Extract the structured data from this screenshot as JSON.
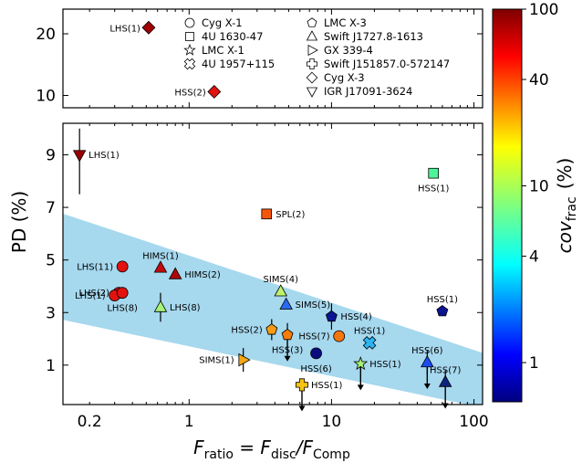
{
  "chart_data": {
    "type": "scatter",
    "x_scale": "log",
    "colorbar_scale": "log",
    "colorbar_ticks": [
      "1",
      "4",
      "10",
      "40",
      "100"
    ],
    "colorbar_label_parts": [
      "cov",
      "frac",
      "(%)"
    ],
    "xlabel_parts": [
      "F",
      "ratio",
      " = F",
      "disc",
      "/F",
      "Comp"
    ],
    "ylabel": "PD (%)",
    "x_ticks": [
      "0.2",
      "1",
      "10",
      "100"
    ],
    "top_panel": {
      "ylim": [
        8,
        24
      ],
      "y_ticks": [
        "10",
        "20"
      ],
      "points": [
        {
          "x": 0.52,
          "y": 21.0,
          "marker": "diamond",
          "color": "#a00000",
          "label": "LHS(1)"
        },
        {
          "x": 1.5,
          "y": 10.6,
          "marker": "diamond",
          "color": "#e2120f",
          "label": "HSS(2)"
        }
      ]
    },
    "bottom_panel": {
      "ylim": [
        -0.5,
        10.2
      ],
      "y_ticks": [
        "1",
        "3",
        "5",
        "7",
        "9"
      ],
      "points": [
        {
          "x": 0.17,
          "y": 9.0,
          "err_lo": 1.5,
          "err_hi": 1.0,
          "marker": "tri-down",
          "color": "#9b0000",
          "label": "LHS(1)",
          "label_pos": "right"
        },
        {
          "x": 0.34,
          "y": 4.75,
          "marker": "circle",
          "color": "#e2120f",
          "label": "LHS(11)",
          "label_pos": "left"
        },
        {
          "x": 0.32,
          "y": 3.75,
          "marker": "circle",
          "color": "#e2120f",
          "label": "LHS(2)",
          "label_pos": "left"
        },
        {
          "x": 0.3,
          "y": 3.65,
          "marker": "circle",
          "color": "#e2120f",
          "label": "LHS(1)",
          "label_pos": "left"
        },
        {
          "x": 0.34,
          "y": 3.75,
          "marker": "circle",
          "color": "#e2120f",
          "label": "LHS(8)",
          "label_pos": "below"
        },
        {
          "x": 0.63,
          "y": 4.7,
          "marker": "tri-up",
          "color": "#c40a0a",
          "label": "HIMS(1)",
          "label_pos": "above"
        },
        {
          "x": 0.8,
          "y": 4.45,
          "marker": "tri-up",
          "color": "#b00606",
          "label": "HIMS(2)",
          "label_pos": "right"
        },
        {
          "x": 0.63,
          "y": 3.2,
          "err_lo": 0.55,
          "err_hi": 0.55,
          "marker": "tri-up",
          "color": "#a8f279",
          "label": "LHS(8)",
          "label_pos": "right"
        },
        {
          "x": 3.5,
          "y": 6.75,
          "marker": "square",
          "color": "#f5560c",
          "label": "SPL(2)",
          "label_pos": "right"
        },
        {
          "x": 52,
          "y": 8.3,
          "marker": "square",
          "color": "#4cf59a",
          "label": "HSS(1)",
          "label_pos": "below"
        },
        {
          "x": 4.4,
          "y": 3.8,
          "marker": "tri-up",
          "color": "#bff26b",
          "label": "SIMS(4)",
          "label_pos": "above"
        },
        {
          "x": 4.8,
          "y": 3.3,
          "marker": "tri-up",
          "color": "#2a6af2",
          "label": "SIMS(5)",
          "label_pos": "right"
        },
        {
          "x": 3.8,
          "y": 2.35,
          "err_lo": 0.4,
          "err_hi": 0.4,
          "marker": "pentagon",
          "color": "#f59b14",
          "label": "HSS(2)",
          "label_pos": "left"
        },
        {
          "x": 4.9,
          "y": 2.15,
          "err_lo": 0.0,
          "err_hi": 0.45,
          "upper_limit": true,
          "marker": "pentagon",
          "color": "#f57d0c",
          "label": "HSS(3)",
          "label_pos": "below"
        },
        {
          "x": 10.0,
          "y": 2.85,
          "err_lo": 0.5,
          "err_hi": 0.5,
          "marker": "pentagon",
          "color": "#0c1691",
          "label": "HSS(4)",
          "label_pos": "right"
        },
        {
          "x": 11.3,
          "y": 2.1,
          "marker": "circle",
          "color": "#f5760c",
          "label": "HSS(7)",
          "label_pos": "left"
        },
        {
          "x": 7.8,
          "y": 1.45,
          "marker": "circle",
          "color": "#0a0c7d",
          "label": "HSS(6)",
          "label_pos": "below"
        },
        {
          "x": 18.5,
          "y": 1.85,
          "marker": "cross",
          "color": "#2ab5f2",
          "label": "HSS(1)",
          "label_pos": "above"
        },
        {
          "x": 16,
          "y": 1.05,
          "upper_limit": true,
          "marker": "star",
          "color": "#a8f279",
          "label": "HSS(1)",
          "label_pos": "right"
        },
        {
          "x": 2.4,
          "y": 1.2,
          "err_lo": 0.45,
          "err_hi": 0.45,
          "marker": "tri-right",
          "color": "#f5a814",
          "label": "SIMS(1)",
          "label_pos": "left"
        },
        {
          "x": 6.2,
          "y": 0.25,
          "upper_limit": true,
          "marker": "plus",
          "color": "#f5c414",
          "label": "HSS(1)",
          "label_pos": "right"
        },
        {
          "x": 47,
          "y": 1.1,
          "err_lo": 0.45,
          "err_hi": 0.45,
          "upper_limit": true,
          "marker": "tri-up",
          "color": "#1a4cf2",
          "label": "HSS(6)",
          "label_pos": "above"
        },
        {
          "x": 63,
          "y": 0.35,
          "err_lo": 0.0,
          "err_hi": 0.45,
          "upper_limit": true,
          "marker": "tri-up",
          "color": "#0e237d",
          "label": "HSS(7)",
          "label_pos": "above"
        },
        {
          "x": 60,
          "y": 3.05,
          "marker": "pentagon",
          "color": "#0c1491",
          "label": "HSS(1)",
          "label_pos": "above"
        }
      ],
      "band": {
        "x_range": [
          0.15,
          110
        ],
        "upper": [
          6.65,
          1.5
        ],
        "lower": [
          2.65,
          -0.6
        ],
        "color": "#a6d8ee"
      }
    },
    "legend": [
      {
        "marker": "circle",
        "label": "Cyg X-1"
      },
      {
        "marker": "square",
        "label": "4U 1630-47"
      },
      {
        "marker": "star",
        "label": "LMC X-1"
      },
      {
        "marker": "cross",
        "label": "4U 1957+115"
      },
      {
        "marker": "pentagon",
        "label": "LMC X-3"
      },
      {
        "marker": "tri-up",
        "label": "Swift J1727.8-1613"
      },
      {
        "marker": "tri-right",
        "label": "GX 339-4"
      },
      {
        "marker": "plus",
        "label": "Swift J151857.0-572147"
      },
      {
        "marker": "diamond",
        "label": "Cyg X-3"
      },
      {
        "marker": "tri-down",
        "label": "IGR J17091-3624"
      }
    ]
  }
}
